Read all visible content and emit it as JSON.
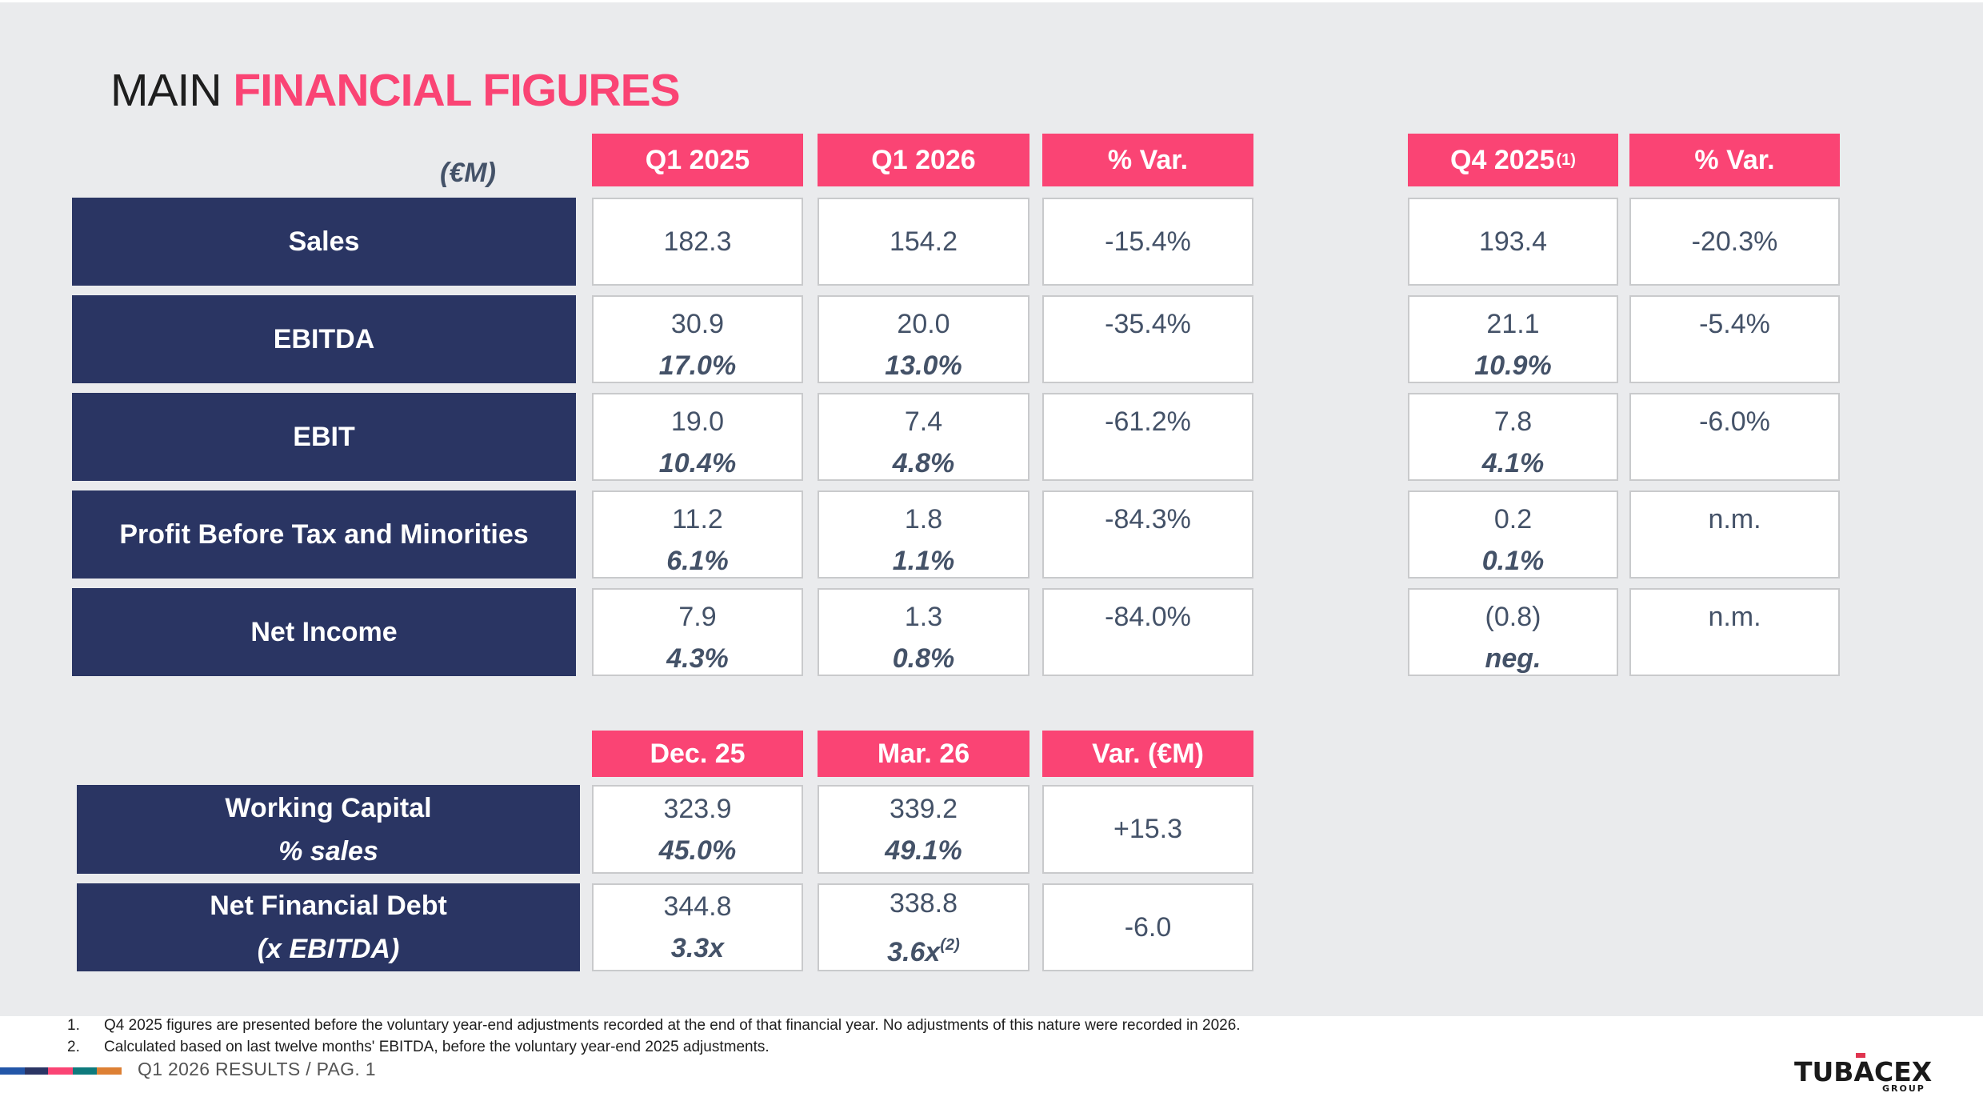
{
  "title": {
    "part1": "MAIN ",
    "part2": "FINANCIAL FIGURES"
  },
  "unit_label": "(€M)",
  "colors": {
    "accent_pink": "#FA4474",
    "label_navy": "#2A3563",
    "text_slate": "#445268",
    "background": "#EAEBED"
  },
  "pl_table": {
    "headers": [
      {
        "label": "Q1 2025",
        "note": ""
      },
      {
        "label": "Q1 2026",
        "note": ""
      },
      {
        "label": "% Var.",
        "note": ""
      },
      {
        "label": "Q4 2025",
        "note": "(1)"
      },
      {
        "label": "% Var.",
        "note": ""
      }
    ],
    "rows": [
      {
        "label": "Sales",
        "q1_2025": {
          "value": "182.3",
          "margin": ""
        },
        "q1_2026": {
          "value": "154.2",
          "margin": ""
        },
        "var_yoy": "-15.4%",
        "q4_2025": {
          "value": "193.4",
          "margin": ""
        },
        "var_qoq": "-20.3%"
      },
      {
        "label": "EBITDA",
        "q1_2025": {
          "value": "30.9",
          "margin": "17.0%"
        },
        "q1_2026": {
          "value": "20.0",
          "margin": "13.0%"
        },
        "var_yoy": "-35.4%",
        "q4_2025": {
          "value": "21.1",
          "margin": "10.9%"
        },
        "var_qoq": "-5.4%"
      },
      {
        "label": "EBIT",
        "q1_2025": {
          "value": "19.0",
          "margin": "10.4%"
        },
        "q1_2026": {
          "value": "7.4",
          "margin": "4.8%"
        },
        "var_yoy": "-61.2%",
        "q4_2025": {
          "value": "7.8",
          "margin": "4.1%"
        },
        "var_qoq": "-6.0%"
      },
      {
        "label": "Profit Before Tax and Minorities",
        "q1_2025": {
          "value": "11.2",
          "margin": "6.1%"
        },
        "q1_2026": {
          "value": "1.8",
          "margin": "1.1%"
        },
        "var_yoy": "-84.3%",
        "q4_2025": {
          "value": "0.2",
          "margin": "0.1%"
        },
        "var_qoq": "n.m."
      },
      {
        "label": "Net Income",
        "q1_2025": {
          "value": "7.9",
          "margin": "4.3%"
        },
        "q1_2026": {
          "value": "1.3",
          "margin": "0.8%"
        },
        "var_yoy": "-84.0%",
        "q4_2025": {
          "value": "(0.8)",
          "margin": "neg."
        },
        "var_qoq": "n.m."
      }
    ]
  },
  "balance_table": {
    "headers": [
      {
        "label": "Dec. 25"
      },
      {
        "label": "Mar. 26"
      },
      {
        "label": "Var. (€M)"
      }
    ],
    "rows": [
      {
        "label": "Working Capital",
        "sublabel": "% sales",
        "dec_25": {
          "value": "323.9",
          "ratio": "45.0%",
          "note": ""
        },
        "mar_26": {
          "value": "339.2",
          "ratio": "49.1%",
          "note": ""
        },
        "var": "+15.3"
      },
      {
        "label": "Net Financial Debt",
        "sublabel": "(x EBITDA)",
        "dec_25": {
          "value": "344.8",
          "ratio": "3.3x",
          "note": ""
        },
        "mar_26": {
          "value": "338.8",
          "ratio": "3.6x",
          "note": "(2)"
        },
        "var": "-6.0"
      }
    ]
  },
  "footnotes": [
    {
      "num": "1.",
      "text": "Q4 2025 figures are presented before the voluntary year-end adjustments recorded at the end of that financial year. No adjustments of this nature were recorded in 2026."
    },
    {
      "num": "2.",
      "text": "Calculated based on last twelve months' EBITDA, before the voluntary year-end 2025 adjustments."
    }
  ],
  "footer": {
    "page_info": "Q1 2026 RESULTS / PAG.  1",
    "color_bar": [
      "#2356A8",
      "#2B3564",
      "#FA4474",
      "#0E7A7C",
      "#DD8034"
    ],
    "logo": {
      "name": "TUBACEX",
      "tagline": "GROUP"
    }
  }
}
